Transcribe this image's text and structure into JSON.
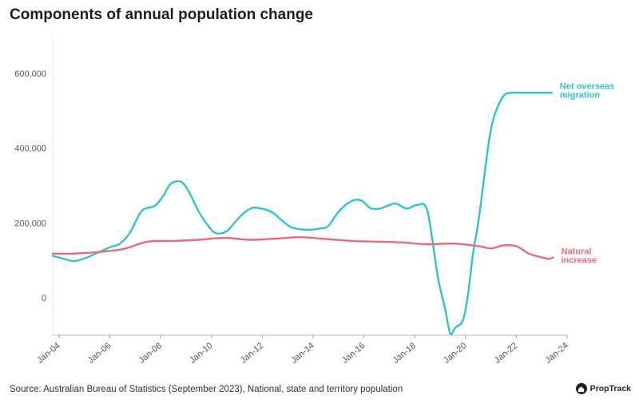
{
  "title": "Components of annual population change",
  "source": "Source: Australian Bureau of Statistics (September 2023), National, state and territory population",
  "logo_text": "PropTrack",
  "chart_data": {
    "type": "line",
    "title": "Components of annual population change",
    "xlabel": "",
    "ylabel": "",
    "ylim": [
      -100000,
      700000
    ],
    "grid": false,
    "x_tick_labels": [
      "Jan-04",
      "Jan-06",
      "Jan-08",
      "Jan-10",
      "Jan-12",
      "Jan-14",
      "Jan-16",
      "Jan-18",
      "Jan-20",
      "Jan-22",
      "Jan-24"
    ],
    "y_ticks": [
      0,
      200000,
      400000,
      600000
    ],
    "y_tick_labels": [
      "0",
      "200,000",
      "400,000",
      "600,000"
    ],
    "series": [
      {
        "name": "Net overseas migration",
        "label_lines": [
          "Net overseas",
          "migration"
        ],
        "color": "#2ec4cf",
        "x": [
          2003.75,
          2004.25,
          2004.6,
          2005.0,
          2005.5,
          2006.0,
          2006.4,
          2006.8,
          2007.25,
          2007.75,
          2008.1,
          2008.4,
          2008.8,
          2009.1,
          2009.5,
          2009.9,
          2010.2,
          2010.6,
          2010.9,
          2011.25,
          2011.6,
          2012.0,
          2012.4,
          2012.75,
          2013.1,
          2013.5,
          2013.9,
          2014.25,
          2014.6,
          2015.0,
          2015.5,
          2015.9,
          2016.25,
          2016.6,
          2016.9,
          2017.25,
          2017.6,
          2017.8,
          2018.1,
          2018.5,
          2018.9,
          2019.2,
          2019.4,
          2019.6,
          2019.9,
          2020.1,
          2020.3,
          2020.5,
          2020.75,
          2020.95,
          2021.15,
          2021.5,
          2021.8,
          2022.1,
          2022.4,
          2022.7,
          2023.0,
          2023.2,
          2023.4
        ],
        "values": [
          112000,
          103000,
          98000,
          105000,
          120000,
          135000,
          145000,
          175000,
          232000,
          245000,
          272000,
          305000,
          310000,
          285000,
          230000,
          190000,
          172000,
          178000,
          200000,
          225000,
          240000,
          238000,
          228000,
          208000,
          190000,
          183000,
          182000,
          185000,
          192000,
          230000,
          258000,
          260000,
          240000,
          238000,
          245000,
          252000,
          240000,
          240000,
          248000,
          232000,
          60000,
          -30000,
          -95000,
          -80000,
          -60000,
          10000,
          120000,
          200000,
          330000,
          430000,
          490000,
          540000,
          548000,
          548000,
          548000,
          548000,
          548000,
          548000,
          548000
        ],
        "note": "values after mid-2023 not shown; line ends at ~548,000"
      },
      {
        "name": "Natural increase",
        "label_lines": [
          "Natural",
          "increase"
        ],
        "color": "#e86b75",
        "x": [
          2003.75,
          2004.5,
          2005.5,
          2006.5,
          2007.5,
          2008.5,
          2009.5,
          2010.5,
          2011.5,
          2012.5,
          2013.5,
          2014.5,
          2015.5,
          2016.5,
          2017.5,
          2018.5,
          2019.5,
          2020.5,
          2021.0,
          2021.5,
          2022.0,
          2022.5,
          2023.0,
          2023.3,
          2023.45
        ],
        "values": [
          118000,
          118000,
          122000,
          130000,
          150000,
          152000,
          155000,
          160000,
          155000,
          158000,
          162000,
          157000,
          152000,
          150000,
          148000,
          143000,
          145000,
          138000,
          132000,
          140000,
          138000,
          118000,
          108000,
          104000,
          108000
        ]
      }
    ]
  }
}
